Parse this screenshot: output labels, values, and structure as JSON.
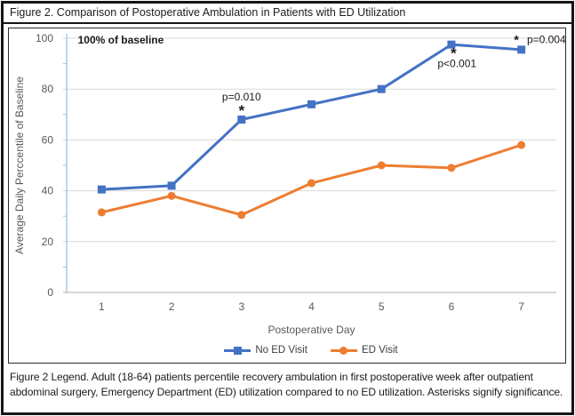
{
  "figure": {
    "title": "Figure 2. Comparison of Postoperative Ambulation in Patients with ED Utilization",
    "caption": "Figure 2 Legend. Adult (18-64) patients percentile recovery ambulation in first postoperative week after outpatient abdominal surgery, Emergency Department (ED) utilization compared to no ED utilization. Asterisks signify significance."
  },
  "chart_data": {
    "type": "line",
    "title": "",
    "xlabel": "Postoperative Day",
    "ylabel": "Average Daily Perccentile of Baseline",
    "categories": [
      1,
      2,
      3,
      4,
      5,
      6,
      7
    ],
    "series": [
      {
        "name": "No ED Visit",
        "color": "#4472C4",
        "marker": "square",
        "values": [
          40.5,
          42,
          68,
          74,
          80,
          97.5,
          95.5
        ]
      },
      {
        "name": "ED Visit",
        "color": "#ED7D31",
        "marker": "circle",
        "values": [
          31.5,
          38,
          30.5,
          43,
          50,
          49,
          58
        ]
      }
    ],
    "ylim": [
      0,
      100
    ],
    "ytick_step": 20,
    "ytick_minor_step": 10,
    "grid": true,
    "legend_position": "bottom",
    "annotations": [
      {
        "text": "100% of baseline",
        "day": 0.66,
        "value": 99.3,
        "anchor": "start",
        "bold": true,
        "size": 12
      },
      {
        "text": "p=0.010",
        "day": 3.0,
        "value": 77,
        "anchor": "middle",
        "bold": false,
        "size": 12
      },
      {
        "text": "*",
        "day": 3.0,
        "value": 71.5,
        "anchor": "middle",
        "bold": true,
        "size": 17
      },
      {
        "text": "*",
        "day": 6.03,
        "value": 94,
        "anchor": "middle",
        "bold": true,
        "size": 17
      },
      {
        "text": "p<0.001",
        "day": 6.08,
        "value": 90,
        "anchor": "middle",
        "bold": false,
        "size": 12
      },
      {
        "text": "*",
        "day": 6.93,
        "value": 99.5,
        "anchor": "middle",
        "bold": true,
        "size": 14
      },
      {
        "text": "p=0.004",
        "day": 7.08,
        "value": 99.4,
        "anchor": "start",
        "bold": false,
        "size": 12
      }
    ],
    "style": {
      "gridline_color": "#d9d9d9",
      "x_axis_color": "#bdbdbd",
      "y_axis_color": "#9dc3e6",
      "tick_label_color": "#595959",
      "axis_title_color": "#595959",
      "annotation_color": "#1a1a1a"
    }
  }
}
